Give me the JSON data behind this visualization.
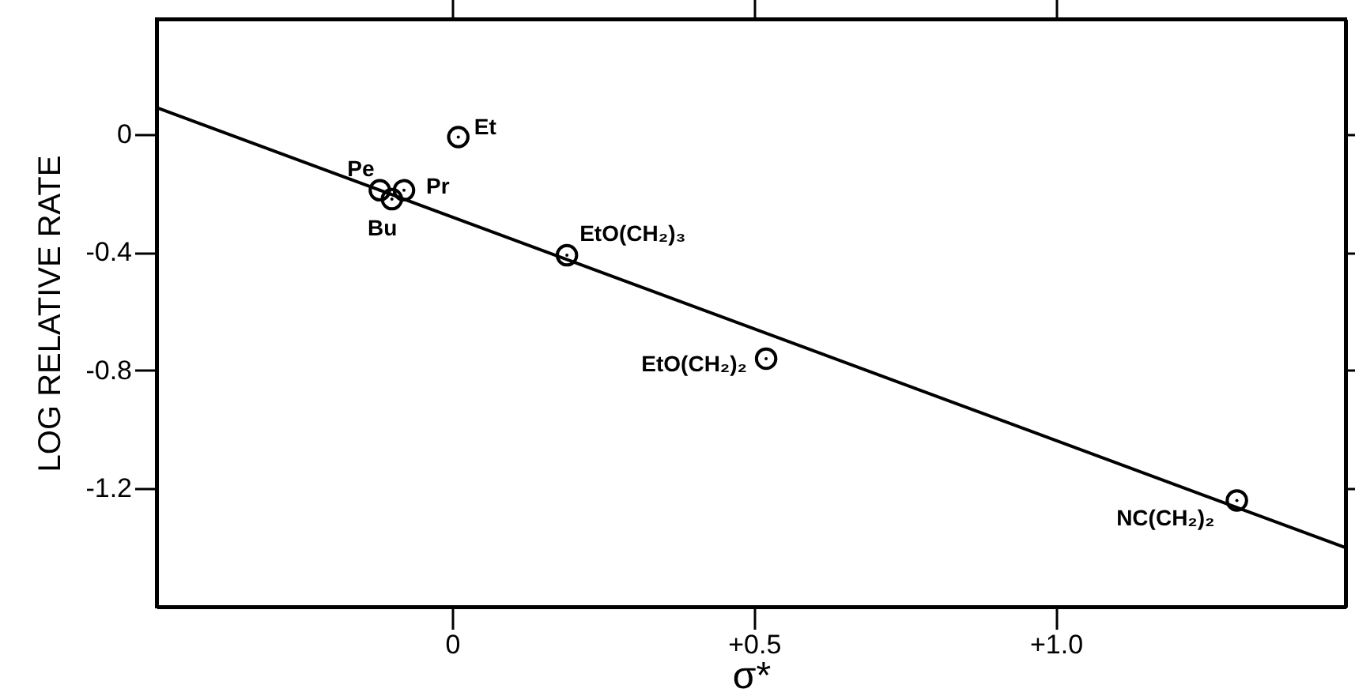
{
  "chart_data": {
    "type": "scatter",
    "xlabel": "σ*",
    "ylabel": "LOG RELATIVE RATE",
    "xlim": [
      -0.49,
      1.48
    ],
    "ylim": [
      -1.6,
      0.39
    ],
    "xticks": [
      0,
      {
        "value": 0.5,
        "label": "+0.5"
      },
      {
        "value": 1.0,
        "label": "+1.0"
      }
    ],
    "yticks": [
      0,
      -0.4,
      -0.8,
      -1.2
    ],
    "grid": false,
    "series": [
      {
        "color": "#000000",
        "marker": "circle",
        "x": [
          0.01,
          -0.12,
          -0.08,
          -0.1,
          0.19,
          0.52,
          1.3
        ],
        "values": [
          -0.01,
          -0.19,
          -0.19,
          -0.22,
          -0.41,
          -0.76,
          -1.24
        ]
      },
      {
        "type": "line",
        "color": "#000000",
        "line_style": "solid",
        "marker": "none",
        "x": [
          -0.49,
          1.48
        ],
        "values": [
          0.09,
          -1.4
        ]
      }
    ],
    "annotations": [
      {
        "text": "Et",
        "x": 0.01,
        "y": -0.01
      },
      {
        "text": "Pe",
        "x": -0.12,
        "y": -0.19
      },
      {
        "text": "Pr",
        "x": -0.08,
        "y": -0.19
      },
      {
        "text": "Bu",
        "x": -0.1,
        "y": -0.22
      },
      {
        "text": "EtO(CH₂)₃",
        "x": 0.19,
        "y": -0.41
      },
      {
        "text": "EtO(CH₂)₂",
        "x": 0.52,
        "y": -0.76
      },
      {
        "text": "NC(CH₂)₂",
        "x": 1.3,
        "y": -1.24
      }
    ]
  }
}
